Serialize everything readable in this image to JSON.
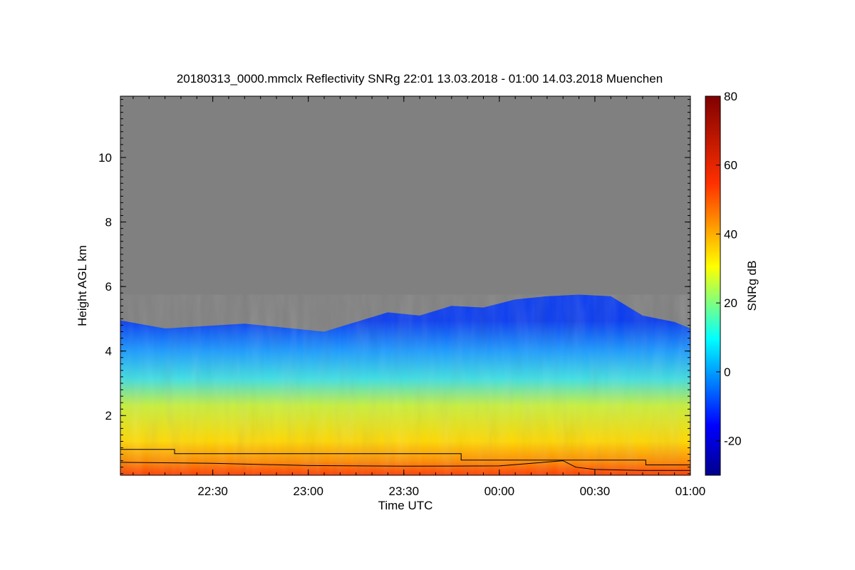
{
  "chart_data": {
    "type": "heatmap",
    "title": "20180313_0000.mmclx Reflectivity SNRg   22:01 13.03.2018 - 01:00 14.03.2018 Muenchen",
    "xlabel": "Time UTC",
    "ylabel": "Height AGL km",
    "xlim": [
      "22:01",
      "01:00"
    ],
    "ylim": [
      0.15,
      11.9
    ],
    "x_ticks": [
      "22:30",
      "23:00",
      "23:30",
      "00:00",
      "00:30",
      "01:00"
    ],
    "y_ticks": [
      "2",
      "4",
      "6",
      "8",
      "10"
    ],
    "y_tick_values": [
      2,
      4,
      6,
      8,
      10
    ],
    "colorbar": {
      "label": "SNRg dB",
      "range": [
        -30,
        80
      ],
      "ticks": [
        "-20",
        "0",
        "20",
        "40",
        "60",
        "80"
      ],
      "tick_values": [
        -20,
        0,
        20,
        40,
        60,
        80
      ],
      "colormap": "jet"
    },
    "no_signal_color": "#808080",
    "echo_top_km": [
      {
        "time": "22:01",
        "height": 4.95
      },
      {
        "time": "22:15",
        "height": 4.7
      },
      {
        "time": "22:40",
        "height": 4.85
      },
      {
        "time": "22:55",
        "height": 4.7
      },
      {
        "time": "23:05",
        "height": 4.6
      },
      {
        "time": "23:15",
        "height": 4.9
      },
      {
        "time": "23:25",
        "height": 5.2
      },
      {
        "time": "23:35",
        "height": 5.1
      },
      {
        "time": "23:45",
        "height": 5.4
      },
      {
        "time": "23:55",
        "height": 5.35
      },
      {
        "time": "00:05",
        "height": 5.6
      },
      {
        "time": "00:15",
        "height": 5.7
      },
      {
        "time": "00:25",
        "height": 5.75
      },
      {
        "time": "00:35",
        "height": 5.7
      },
      {
        "time": "00:45",
        "height": 5.1
      },
      {
        "time": "00:55",
        "height": 4.9
      },
      {
        "time": "01:00",
        "height": 4.7
      }
    ],
    "lines": [
      {
        "points": [
          [
            "22:01",
            0.95
          ],
          [
            "22:18",
            0.95
          ],
          [
            "22:18",
            0.82
          ],
          [
            "23:48",
            0.82
          ],
          [
            "23:48",
            0.62
          ],
          [
            "00:46",
            0.62
          ],
          [
            "00:46",
            0.47
          ],
          [
            "01:00",
            0.47
          ]
        ]
      },
      {
        "points": [
          [
            "22:01",
            0.55
          ],
          [
            "22:30",
            0.52
          ],
          [
            "23:00",
            0.45
          ],
          [
            "23:30",
            0.43
          ],
          [
            "00:00",
            0.44
          ],
          [
            "00:20",
            0.6
          ],
          [
            "00:24",
            0.4
          ],
          [
            "00:30",
            0.33
          ],
          [
            "00:45",
            0.3
          ],
          [
            "01:00",
            0.3
          ]
        ]
      }
    ]
  }
}
